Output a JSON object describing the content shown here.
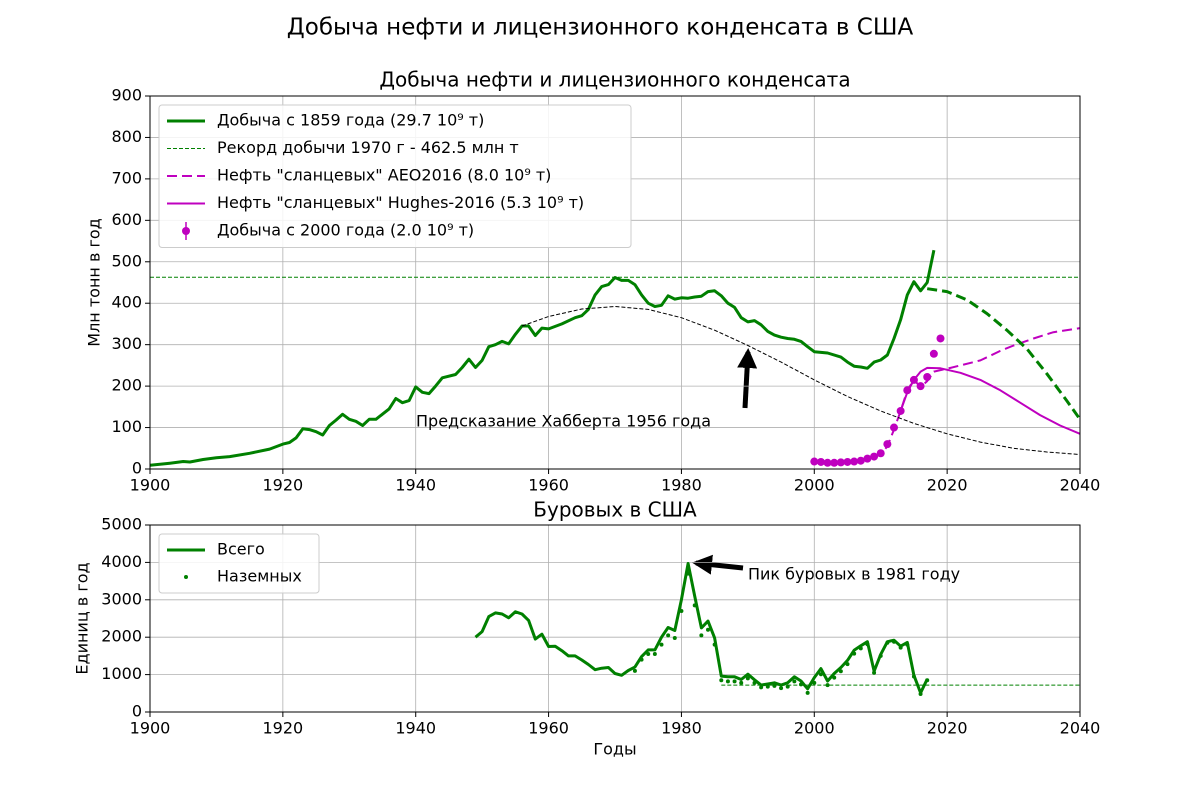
{
  "title": "Добыча нефти и лицензионного конденсата в США",
  "chart_data": [
    {
      "type": "line",
      "title": "Добыча нефти и лицензионного конденсата",
      "y_label": "Млн тонн в год",
      "xlim": [
        1900,
        2040
      ],
      "xticks": [
        1900,
        1920,
        1940,
        1960,
        1980,
        2000,
        2020,
        2040
      ],
      "ylim": [
        0,
        900
      ],
      "yticks": [
        0,
        100,
        200,
        300,
        400,
        500,
        600,
        700,
        800,
        900
      ],
      "grid": true,
      "legend": "upper left",
      "annotations": [
        "Предсказание Хабберта 1956 года"
      ],
      "series": [
        {
          "name": "Добыча с 1859 года (29.7 10⁹ т)",
          "color": "#008000",
          "linestyle": "solid",
          "linewidth": 3,
          "x": [
            1900,
            1903,
            1905,
            1906,
            1908,
            1910,
            1912,
            1915,
            1918,
            1920,
            1921,
            1922,
            1923,
            1924,
            1925,
            1926,
            1927,
            1928,
            1929,
            1930,
            1931,
            1932,
            1933,
            1934,
            1936,
            1937,
            1938,
            1939,
            1940,
            1941,
            1942,
            1943,
            1944,
            1946,
            1947,
            1948,
            1949,
            1950,
            1951,
            1952,
            1953,
            1954,
            1955,
            1956,
            1957,
            1958,
            1959,
            1960,
            1962,
            1964,
            1965,
            1966,
            1967,
            1968,
            1969,
            1970,
            1971,
            1972,
            1973,
            1974,
            1975,
            1976,
            1977,
            1978,
            1979,
            1980,
            1981,
            1982,
            1983,
            1984,
            1985,
            1986,
            1987,
            1988,
            1989,
            1990,
            1991,
            1992,
            1993,
            1994,
            1995,
            1996,
            1997,
            1998,
            1999,
            2000,
            2002,
            2004,
            2005,
            2006,
            2007,
            2008,
            2009,
            2010,
            2011,
            2012,
            2013,
            2014,
            2015,
            2016,
            2017,
            2018
          ],
          "values": [
            9,
            14,
            18,
            17,
            23,
            27,
            30,
            38,
            48,
            60,
            64,
            75,
            97,
            95,
            90,
            82,
            105,
            118,
            132,
            120,
            115,
            105,
            120,
            120,
            145,
            170,
            160,
            165,
            198,
            185,
            182,
            200,
            220,
            228,
            245,
            265,
            245,
            262,
            295,
            300,
            308,
            302,
            325,
            345,
            345,
            322,
            340,
            338,
            350,
            365,
            370,
            385,
            420,
            440,
            445,
            462,
            455,
            455,
            445,
            420,
            400,
            392,
            395,
            418,
            410,
            413,
            412,
            415,
            417,
            428,
            430,
            418,
            400,
            390,
            365,
            355,
            358,
            348,
            332,
            323,
            318,
            315,
            313,
            308,
            295,
            283,
            280,
            270,
            258,
            248,
            246,
            243,
            258,
            263,
            275,
            315,
            360,
            420,
            452,
            430,
            450,
            528
          ]
        },
        {
          "name": "Рекорд добычи 1970 г - 462.5 млн т",
          "color": "#008000",
          "linestyle": "dashed",
          "linewidth": 1,
          "x": [
            1900,
            2040
          ],
          "values": [
            462.5,
            462.5
          ]
        },
        {
          "name": "Нефть \"сланцевых\" AEO2016 (8.0 10⁹ т)",
          "color": "#bf00bf",
          "linestyle": "dashed",
          "linewidth": 2,
          "x": [
            2000,
            2005,
            2008,
            2010,
            2011,
            2012,
            2013,
            2014,
            2015,
            2016,
            2017,
            2018,
            2020,
            2022,
            2025,
            2028,
            2030,
            2033,
            2036,
            2040
          ],
          "values": [
            15,
            17,
            22,
            35,
            55,
            95,
            140,
            190,
            215,
            198,
            212,
            235,
            242,
            250,
            262,
            285,
            298,
            315,
            330,
            340
          ]
        },
        {
          "name": "Нефть \"сланцевых\" Hughes-2016 (5.3 10⁹ т)",
          "color": "#bf00bf",
          "linestyle": "solid",
          "linewidth": 2,
          "x": [
            2013,
            2014,
            2015,
            2016,
            2017,
            2019,
            2022,
            2025,
            2028,
            2031,
            2034,
            2037,
            2040
          ],
          "values": [
            140,
            185,
            215,
            235,
            244,
            243,
            232,
            215,
            190,
            160,
            130,
            105,
            85
          ]
        },
        {
          "name": "Добыча с 2000 года (2.0 10⁹ т)",
          "color": "#bf00bf",
          "linestyle": "none",
          "marker": "o",
          "x": [
            2000,
            2001,
            2002,
            2003,
            2004,
            2005,
            2006,
            2007,
            2008,
            2009,
            2010,
            2011,
            2012,
            2013,
            2014,
            2015,
            2016,
            2017,
            2018,
            2019
          ],
          "values": [
            18,
            17,
            15,
            15,
            16,
            17,
            18,
            20,
            25,
            30,
            38,
            60,
            100,
            140,
            190,
            215,
            200,
            222,
            278,
            315
          ]
        },
        {
          "color": "#008000",
          "linestyle": "dashed",
          "linewidth": 3,
          "x": [
            2017,
            2020,
            2023,
            2026,
            2029,
            2032,
            2035,
            2038,
            2040
          ],
          "values": [
            435,
            428,
            408,
            375,
            335,
            290,
            230,
            165,
            120
          ]
        },
        {
          "color": "#000000",
          "linestyle": "dashed",
          "linewidth": 1,
          "x": [
            1956,
            1960,
            1965,
            1970,
            1975,
            1980,
            1985,
            1990,
            1995,
            2000,
            2005,
            2010,
            2015,
            2020,
            2025,
            2030,
            2035,
            2040
          ],
          "values": [
            345,
            368,
            386,
            392,
            385,
            365,
            335,
            298,
            258,
            215,
            175,
            140,
            110,
            85,
            65,
            50,
            41,
            35
          ]
        }
      ]
    },
    {
      "type": "line",
      "title": "Буровых в США",
      "x_label": "Годы",
      "y_label": "Единиц в год",
      "xlim": [
        1900,
        2040
      ],
      "xticks": [
        1900,
        1920,
        1940,
        1960,
        1980,
        2000,
        2020,
        2040
      ],
      "ylim": [
        0,
        5000
      ],
      "yticks": [
        0,
        1000,
        2000,
        3000,
        4000,
        5000
      ],
      "grid": true,
      "legend": "upper left",
      "annotations": [
        "Пик буровых в 1981 году"
      ],
      "series": [
        {
          "name": "Всего",
          "color": "#008000",
          "linestyle": "solid",
          "linewidth": 3,
          "x": [
            1949,
            1950,
            1951,
            1952,
            1953,
            1954,
            1955,
            1956,
            1957,
            1958,
            1959,
            1960,
            1961,
            1962,
            1963,
            1964,
            1965,
            1966,
            1967,
            1968,
            1969,
            1970,
            1971,
            1972,
            1973,
            1974,
            1975,
            1976,
            1977,
            1978,
            1979,
            1980,
            1981,
            1982,
            1983,
            1984,
            1985,
            1986,
            1987,
            1988,
            1989,
            1990,
            1991,
            1992,
            1993,
            1994,
            1995,
            1996,
            1997,
            1998,
            1999,
            2000,
            2001,
            2002,
            2003,
            2004,
            2005,
            2006,
            2007,
            2008,
            2009,
            2010,
            2011,
            2012,
            2013,
            2014,
            2015,
            2016,
            2017
          ],
          "values": [
            2000,
            2150,
            2550,
            2650,
            2620,
            2520,
            2680,
            2620,
            2450,
            1950,
            2080,
            1750,
            1760,
            1640,
            1500,
            1500,
            1390,
            1270,
            1130,
            1170,
            1190,
            1030,
            980,
            1110,
            1200,
            1480,
            1660,
            1660,
            2000,
            2260,
            2180,
            3000,
            3970,
            3100,
            2250,
            2430,
            1980,
            960,
            940,
            940,
            870,
            1010,
            860,
            720,
            750,
            780,
            720,
            780,
            940,
            830,
            620,
            920,
            1160,
            830,
            1030,
            1190,
            1380,
            1650,
            1770,
            1880,
            1090,
            1540,
            1880,
            1920,
            1760,
            1860,
            980,
            510,
            880
          ]
        },
        {
          "name": "Наземных",
          "color": "#008000",
          "linestyle": "none",
          "marker": "o",
          "x": [
            1973,
            1974,
            1975,
            1976,
            1977,
            1978,
            1979,
            1980,
            1981,
            1982,
            1983,
            1984,
            1985,
            1986,
            1987,
            1988,
            1989,
            1990,
            1991,
            1992,
            1993,
            1994,
            1995,
            1996,
            1997,
            1998,
            1999,
            2000,
            2001,
            2002,
            2003,
            2004,
            2005,
            2006,
            2007,
            2008,
            2009,
            2010,
            2011,
            2012,
            2013,
            2014,
            2015,
            2016,
            2017
          ],
          "values": [
            1100,
            1400,
            1550,
            1550,
            1800,
            2050,
            1980,
            2700,
            3700,
            2850,
            2050,
            2200,
            1800,
            850,
            820,
            820,
            780,
            900,
            780,
            660,
            680,
            700,
            640,
            680,
            820,
            740,
            510,
            780,
            1010,
            720,
            920,
            1090,
            1280,
            1560,
            1700,
            1810,
            1050,
            1500,
            1850,
            1880,
            1720,
            1800,
            950,
            480,
            850
          ]
        },
        {
          "color": "#008000",
          "linestyle": "dashed",
          "linewidth": 1,
          "x": [
            1986,
            2040
          ],
          "values": [
            720,
            720
          ]
        }
      ]
    }
  ]
}
